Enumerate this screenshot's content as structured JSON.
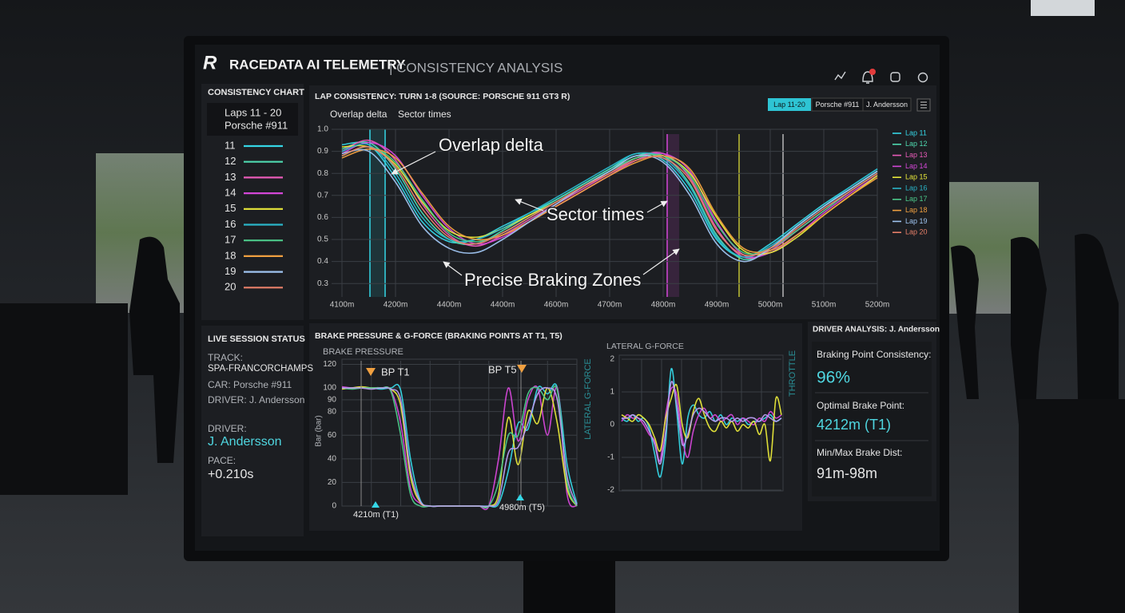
{
  "header": {
    "logo": "R",
    "title": "RACEDATA AI TELEMETRY",
    "subtitle": "| CONSISTENCY ANALYSIS"
  },
  "consistency_panel": {
    "title": "CONSISTENCY CHART",
    "laps": "Laps 11 - 20",
    "car": "Porsche #911",
    "lap_numbers": [
      "11",
      "12",
      "13",
      "14",
      "15",
      "16",
      "17",
      "18",
      "19",
      "20"
    ]
  },
  "session": {
    "title": "LIVE SESSION STATUS",
    "track_label": "TRACK:",
    "track": "SPA-FRANCORCHAMPS",
    "car": "CAR: Porsche #911",
    "driver": "DRIVER: J. Andersson",
    "driver_label": "DRIVER:",
    "driver_name": "J. Andersson",
    "pace_label": "PACE:",
    "pace": "+0.210s"
  },
  "driver_analysis": {
    "title": "DRIVER ANALYSIS: J. Andersson",
    "items": [
      {
        "label": "Braking Point Consistency:",
        "value": "96%"
      },
      {
        "label": "Optimal Brake Point:",
        "value": "4212m (T1)"
      },
      {
        "label": "Min/Max Brake Dist:",
        "value": "91m-98m"
      }
    ]
  },
  "chart_data": [
    {
      "type": "line",
      "title": "LAP CONSISTENCY: TURN 1-8 (SOURCE: PORSCHE 911 GT3 R)",
      "tabs": [
        "Overlap delta",
        "Sector times"
      ],
      "filters": [
        "Lap 11-20",
        "Porsche #911",
        "J. Andersson"
      ],
      "annotations": [
        "Overlap delta",
        "Sector times",
        "Precise Braking Zones"
      ],
      "categories": [
        "4100m",
        null,
        "4200m",
        null,
        "4400m",
        null,
        "4400m",
        null,
        "4600m",
        null,
        "4700m",
        null,
        "4800m",
        null,
        "4900m",
        null,
        "5000m",
        null,
        "5100m",
        null,
        "5200m"
      ],
      "ylim": [
        0.25,
        1
      ],
      "yticks": [
        {
          "value": 1,
          "label": "1.0"
        },
        0.9,
        0.8,
        0.7,
        0.6,
        0.5,
        0.4,
        0.3
      ],
      "grid": true,
      "legend": "right",
      "series": [
        {
          "name": "Lap 11",
          "color": "#35d6e6",
          "values": [
            0.93,
            0.93,
            0.78,
            0.58,
            0.49,
            0.5,
            0.56,
            0.62,
            0.68,
            0.75,
            0.82,
            0.89,
            0.86,
            0.72,
            0.5,
            0.42,
            0.48,
            0.57,
            0.66,
            0.74,
            0.82
          ]
        },
        {
          "name": "Lap 12",
          "color": "#4fd9b0",
          "values": [
            0.91,
            0.94,
            0.82,
            0.62,
            0.5,
            0.48,
            0.54,
            0.61,
            0.68,
            0.75,
            0.82,
            0.88,
            0.88,
            0.75,
            0.52,
            0.41,
            0.46,
            0.56,
            0.65,
            0.73,
            0.81
          ]
        },
        {
          "name": "Lap 13",
          "color": "#e85bb8",
          "values": [
            0.9,
            0.95,
            0.86,
            0.66,
            0.52,
            0.47,
            0.52,
            0.59,
            0.66,
            0.73,
            0.8,
            0.87,
            0.89,
            0.78,
            0.55,
            0.42,
            0.45,
            0.54,
            0.63,
            0.72,
            0.8
          ]
        },
        {
          "name": "Lap 14",
          "color": "#d447d8",
          "values": [
            0.89,
            0.94,
            0.88,
            0.7,
            0.55,
            0.48,
            0.51,
            0.58,
            0.65,
            0.72,
            0.79,
            0.86,
            0.89,
            0.81,
            0.58,
            0.43,
            0.44,
            0.52,
            0.62,
            0.71,
            0.79
          ]
        },
        {
          "name": "Lap 15",
          "color": "#e8e83a",
          "values": [
            0.92,
            0.92,
            0.84,
            0.67,
            0.54,
            0.51,
            0.55,
            0.61,
            0.67,
            0.74,
            0.81,
            0.87,
            0.88,
            0.8,
            0.6,
            0.45,
            0.44,
            0.51,
            0.61,
            0.7,
            0.79
          ]
        },
        {
          "name": "Lap 16",
          "color": "#2ab5c8",
          "values": [
            0.9,
            0.93,
            0.8,
            0.6,
            0.5,
            0.5,
            0.55,
            0.62,
            0.69,
            0.76,
            0.83,
            0.89,
            0.87,
            0.74,
            0.51,
            0.42,
            0.47,
            0.56,
            0.65,
            0.74,
            0.82
          ]
        },
        {
          "name": "Lap 17",
          "color": "#4cc98a",
          "values": [
            0.88,
            0.92,
            0.85,
            0.68,
            0.53,
            0.49,
            0.53,
            0.6,
            0.67,
            0.74,
            0.81,
            0.87,
            0.88,
            0.79,
            0.57,
            0.44,
            0.46,
            0.54,
            0.63,
            0.72,
            0.8
          ]
        },
        {
          "name": "Lap 18",
          "color": "#f0a040",
          "values": [
            0.87,
            0.91,
            0.87,
            0.71,
            0.56,
            0.5,
            0.52,
            0.58,
            0.65,
            0.72,
            0.79,
            0.85,
            0.88,
            0.82,
            0.61,
            0.46,
            0.45,
            0.52,
            0.61,
            0.7,
            0.78
          ]
        },
        {
          "name": "Lap 19",
          "color": "#9fc4f0",
          "values": [
            0.89,
            0.9,
            0.76,
            0.56,
            0.46,
            0.44,
            0.5,
            0.58,
            0.66,
            0.74,
            0.81,
            0.88,
            0.85,
            0.7,
            0.48,
            0.4,
            0.46,
            0.56,
            0.65,
            0.73,
            0.81
          ]
        },
        {
          "name": "Lap 20",
          "color": "#e8806a",
          "values": [
            0.88,
            0.92,
            0.83,
            0.64,
            0.51,
            0.48,
            0.53,
            0.6,
            0.67,
            0.74,
            0.8,
            0.86,
            0.87,
            0.77,
            0.54,
            0.43,
            0.46,
            0.55,
            0.64,
            0.72,
            0.8
          ]
        }
      ]
    },
    {
      "type": "line",
      "title": "BRAKE PRESSURE & G-FORCE (BRAKING POINTS AT T1, T5)",
      "subtitle": "BRAKE PRESSURE",
      "y_label": "Bar (bar)",
      "annotations": [
        "BP T1",
        "BP T5",
        "4210m (T1)",
        "4980m (T5)"
      ],
      "ylim": [
        0,
        123
      ],
      "yticks": [
        0,
        20,
        40,
        60,
        80,
        90,
        100,
        120
      ],
      "grid": true,
      "series": [
        {
          "color": "#35d6e6",
          "values": [
            100,
            100,
            100,
            100,
            99,
            100,
            98,
            40,
            5,
            0,
            0,
            0,
            0,
            0,
            0,
            0,
            2,
            30,
            70,
            65,
            100,
            95,
            100,
            35,
            2
          ]
        },
        {
          "color": "#d447d8",
          "values": [
            101,
            100,
            100,
            100,
            100,
            98,
            70,
            15,
            2,
            0,
            0,
            0,
            0,
            0,
            0,
            0,
            40,
            100,
            55,
            90,
            100,
            60,
            100,
            10,
            0
          ]
        },
        {
          "color": "#e8e83a",
          "values": [
            99,
            100,
            101,
            100,
            100,
            99,
            85,
            25,
            3,
            0,
            0,
            0,
            0,
            0,
            0,
            0,
            10,
            75,
            35,
            80,
            70,
            100,
            70,
            15,
            0
          ]
        },
        {
          "color": "#4cc98a",
          "values": [
            100,
            99,
            100,
            100,
            100,
            97,
            60,
            10,
            0,
            0,
            0,
            0,
            0,
            0,
            0,
            0,
            20,
            60,
            60,
            95,
            100,
            90,
            98,
            20,
            0
          ]
        },
        {
          "color": "#b89cf0",
          "values": [
            100,
            100,
            100,
            99,
            100,
            99,
            90,
            30,
            4,
            0,
            0,
            0,
            0,
            0,
            0,
            0,
            5,
            45,
            50,
            70,
            95,
            100,
            90,
            25,
            1
          ]
        }
      ]
    },
    {
      "type": "line",
      "title": "LATERAL G-FORCE",
      "y_label": "LATERAL G-FORCE",
      "y2_label": "THROTTLE",
      "ylim": [
        -2,
        2
      ],
      "yticks": [
        2,
        1,
        0,
        -1,
        -2
      ],
      "grid": true,
      "series": [
        {
          "color": "#35d6e6",
          "values": [
            0.2,
            0.1,
            0.3,
            0.1,
            0.2,
            -0.1,
            -0.9,
            -1.6,
            -0.5,
            1.7,
            0.4,
            -1.2,
            0.2,
            0.6,
            0.3,
            0.2,
            0.4,
            0.1,
            0.3,
            0.0,
            0.2,
            0.1,
            0.2,
            0.0,
            0.1,
            0.1,
            0.2,
            0.3,
            0.1,
            0.2
          ]
        },
        {
          "color": "#d447d8",
          "values": [
            0.1,
            0.3,
            0.2,
            0.2,
            0.0,
            -0.3,
            -0.5,
            -1.1,
            0.3,
            1.1,
            0.9,
            -0.4,
            -1.0,
            -0.2,
            0.3,
            0.5,
            0.2,
            0.3,
            0.1,
            0.2,
            0.3,
            0.0,
            0.2,
            0.1,
            0.0,
            0.2,
            0.1,
            0.4,
            0.2,
            0.3
          ]
        },
        {
          "color": "#e8e83a",
          "values": [
            0.3,
            0.2,
            0.1,
            0.3,
            0.2,
            0.0,
            -0.4,
            -0.8,
            0.2,
            0.8,
            1.2,
            0.0,
            -0.4,
            0.4,
            0.8,
            0.3,
            -0.1,
            -0.2,
            0.1,
            -0.1,
            0.1,
            -0.2,
            0.0,
            -0.1,
            0.1,
            -0.3,
            0.0,
            -1.1,
            0.8,
            0.3
          ]
        },
        {
          "color": "#b89cf0",
          "values": [
            0.2,
            0.2,
            0.3,
            0.2,
            0.1,
            -0.2,
            -0.6,
            -1.2,
            -0.2,
            1.3,
            0.6,
            -0.6,
            -0.3,
            0.3,
            0.5,
            0.4,
            0.2,
            0.1,
            0.2,
            0.2,
            0.1,
            0.2,
            0.1,
            0.2,
            0.2,
            0.1,
            0.3,
            0.2,
            0.1,
            0.2
          ]
        }
      ]
    }
  ]
}
